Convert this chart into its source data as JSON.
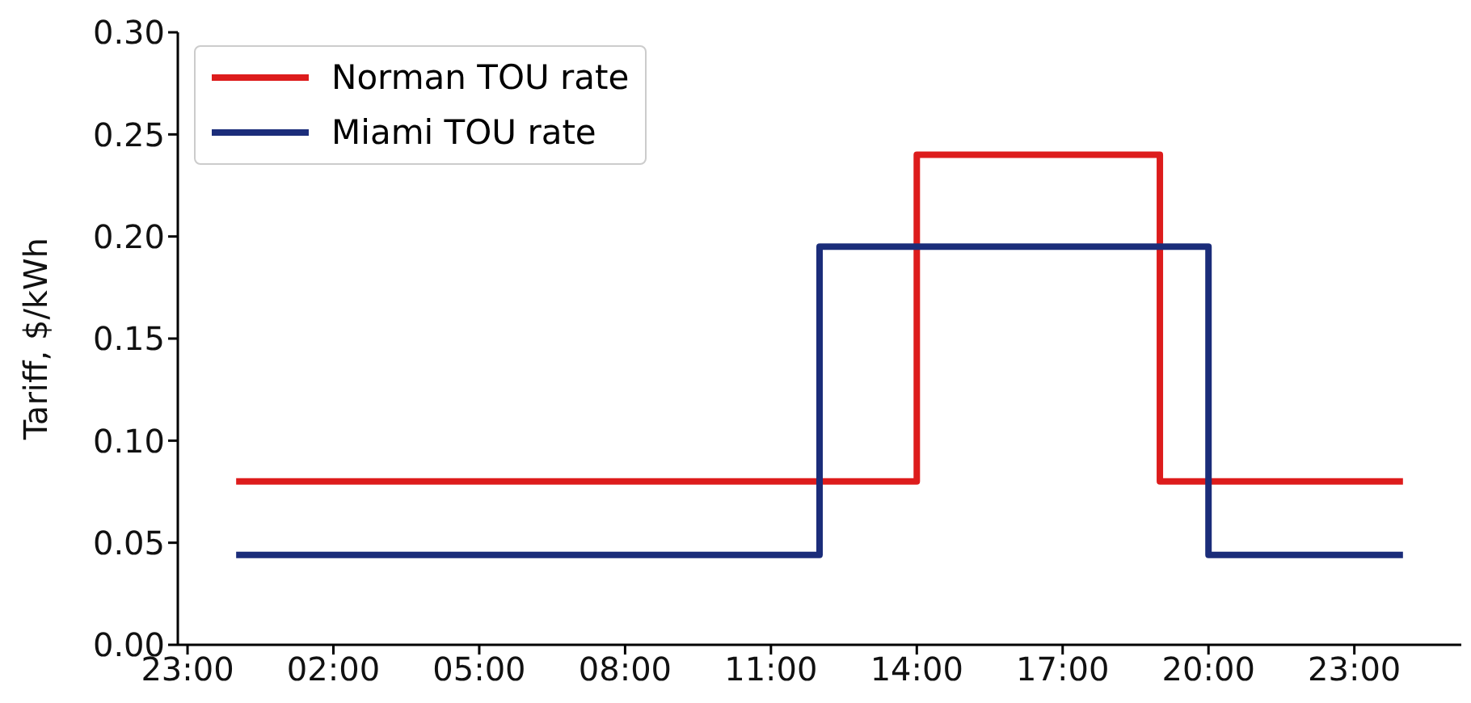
{
  "chart_data": {
    "type": "step",
    "ylabel": "Tariff, $/kWh",
    "xlim": [
      "--01-01T22:48",
      "--01-03T01:12"
    ],
    "xticks": [
      {
        "value": "--01-01T23:00",
        "label": "23:00"
      },
      {
        "value": "--01-02T02:00",
        "label": "02:00"
      },
      {
        "value": "--01-02T05:00",
        "label": "05:00"
      },
      {
        "value": "--01-02T08:00",
        "label": "08:00"
      },
      {
        "value": "--01-02T11:00",
        "label": "11:00"
      },
      {
        "value": "--01-02T14:00",
        "label": "14:00"
      },
      {
        "value": "--01-02T17:00",
        "label": "17:00"
      },
      {
        "value": "--01-02T20:00",
        "label": "20:00"
      },
      {
        "value": "--01-02T23:00",
        "label": "23:00"
      }
    ],
    "ylim": [
      0,
      0.3
    ],
    "yticks": [
      {
        "value": 0,
        "label": "0.00"
      },
      {
        "value": 0.05,
        "label": "0.05"
      },
      {
        "value": 0.1,
        "label": "0.10"
      },
      {
        "value": 0.15,
        "label": "0.15"
      },
      {
        "value": 0.2,
        "label": "0.20"
      },
      {
        "value": 0.25,
        "label": "0.25"
      },
      {
        "value": 0.3,
        "label": "0.30"
      }
    ],
    "grid": false,
    "legend": "top left",
    "line_style": "solid",
    "series": [
      {
        "name": "Norman TOU rate",
        "color": "#dd1c1c",
        "x": [
          "--01-02T00:00",
          "--01-02T14:00",
          "--01-02T19:00",
          "--01-03T00:00"
        ],
        "values": [
          0.08,
          0.24,
          0.08,
          0.08
        ]
      },
      {
        "name": "Miami TOU rate",
        "color": "#1b2d7a",
        "x": [
          "--01-02T00:00",
          "--01-02T12:00",
          "--01-02T20:00",
          "--01-03T00:00"
        ],
        "values": [
          0.044,
          0.195,
          0.044,
          0.044
        ]
      }
    ]
  }
}
